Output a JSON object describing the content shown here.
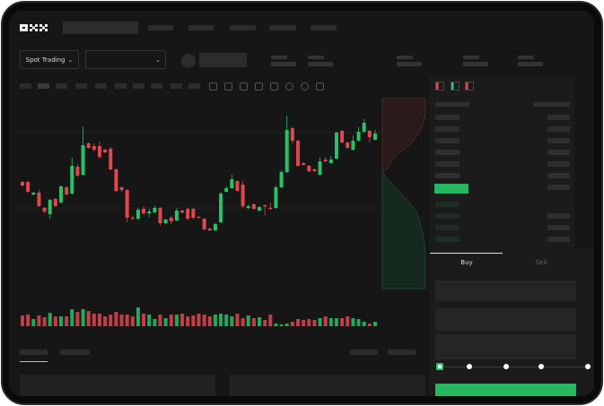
{
  "brand": {
    "logo_text": "OKX"
  },
  "market_select": {
    "label": "Spot Trading",
    "chevron": "chevron-down-icon"
  },
  "pair_select": {
    "chevron": "chevron-down-icon"
  },
  "order_form": {
    "tabs": [
      {
        "label": "Buy",
        "active": true
      },
      {
        "label": "Sell",
        "active": false
      }
    ],
    "slider_level": 0,
    "submit_color": "#25b860"
  },
  "colors": {
    "up": "#26c26a",
    "down": "#e0474c",
    "background": "#161616"
  },
  "chart_data": {
    "type": "candlestick",
    "title": "",
    "xlabel": "",
    "ylabel": "",
    "grid": true,
    "candles": [
      {
        "o": 97,
        "h": 98,
        "l": 92,
        "c": 93
      },
      {
        "o": 97,
        "h": 98,
        "l": 85,
        "c": 86
      },
      {
        "o": 83,
        "h": 86,
        "l": 82,
        "c": 85
      },
      {
        "o": 85,
        "h": 88,
        "l": 69,
        "c": 70
      },
      {
        "o": 68,
        "h": 69,
        "l": 62,
        "c": 64
      },
      {
        "o": 61,
        "h": 78,
        "l": 56,
        "c": 77
      },
      {
        "o": 78,
        "h": 79,
        "l": 69,
        "c": 70
      },
      {
        "o": 74,
        "h": 93,
        "l": 73,
        "c": 92
      },
      {
        "o": 91,
        "h": 92,
        "l": 82,
        "c": 83
      },
      {
        "o": 84,
        "h": 124,
        "l": 83,
        "c": 115
      },
      {
        "o": 114,
        "h": 117,
        "l": 103,
        "c": 104
      },
      {
        "o": 105,
        "h": 159,
        "l": 104,
        "c": 138
      },
      {
        "o": 140,
        "h": 141,
        "l": 134,
        "c": 135
      },
      {
        "o": 137,
        "h": 140,
        "l": 131,
        "c": 133
      },
      {
        "o": 137,
        "h": 142,
        "l": 123,
        "c": 125
      },
      {
        "o": 133,
        "h": 134,
        "l": 129,
        "c": 130
      },
      {
        "o": 134,
        "h": 136,
        "l": 110,
        "c": 111
      },
      {
        "o": 111,
        "h": 112,
        "l": 86,
        "c": 87
      },
      {
        "o": 91,
        "h": 92,
        "l": 86,
        "c": 88
      },
      {
        "o": 88,
        "h": 89,
        "l": 52,
        "c": 57
      },
      {
        "o": 57,
        "h": 59,
        "l": 55,
        "c": 56
      },
      {
        "o": 56,
        "h": 68,
        "l": 54,
        "c": 66
      },
      {
        "o": 67,
        "h": 70,
        "l": 60,
        "c": 62
      },
      {
        "o": 62,
        "h": 67,
        "l": 58,
        "c": 64
      },
      {
        "o": 63,
        "h": 71,
        "l": 62,
        "c": 68
      },
      {
        "o": 68,
        "h": 69,
        "l": 48,
        "c": 51
      },
      {
        "o": 51,
        "h": 56,
        "l": 50,
        "c": 55
      },
      {
        "o": 57,
        "h": 59,
        "l": 50,
        "c": 53
      },
      {
        "o": 54,
        "h": 68,
        "l": 53,
        "c": 65
      },
      {
        "o": 65,
        "h": 66,
        "l": 62,
        "c": 63
      },
      {
        "o": 67,
        "h": 68,
        "l": 54,
        "c": 56
      },
      {
        "o": 67,
        "h": 68,
        "l": 55,
        "c": 57
      },
      {
        "o": 58,
        "h": 59,
        "l": 56,
        "c": 57
      },
      {
        "o": 56,
        "h": 57,
        "l": 43,
        "c": 44
      },
      {
        "o": 45,
        "h": 46,
        "l": 42,
        "c": 43
      },
      {
        "o": 43,
        "h": 51,
        "l": 42,
        "c": 50
      },
      {
        "o": 52,
        "h": 86,
        "l": 51,
        "c": 84
      },
      {
        "o": 86,
        "h": 92,
        "l": 85,
        "c": 90
      },
      {
        "o": 90,
        "h": 105,
        "l": 89,
        "c": 100
      },
      {
        "o": 98,
        "h": 99,
        "l": 86,
        "c": 87
      },
      {
        "o": 94,
        "h": 98,
        "l": 68,
        "c": 70
      },
      {
        "o": 68,
        "h": 72,
        "l": 66,
        "c": 70
      },
      {
        "o": 72,
        "h": 73,
        "l": 66,
        "c": 67
      },
      {
        "o": 65,
        "h": 70,
        "l": 64,
        "c": 69
      },
      {
        "o": 71,
        "h": 72,
        "l": 60,
        "c": 70
      },
      {
        "o": 68,
        "h": 74,
        "l": 66,
        "c": 67
      },
      {
        "o": 68,
        "h": 93,
        "l": 67,
        "c": 91
      },
      {
        "o": 91,
        "h": 110,
        "l": 90,
        "c": 108
      },
      {
        "o": 108,
        "h": 171,
        "l": 107,
        "c": 155
      },
      {
        "o": 157,
        "h": 159,
        "l": 140,
        "c": 143
      },
      {
        "o": 143,
        "h": 144,
        "l": 114,
        "c": 115
      },
      {
        "o": 118,
        "h": 119,
        "l": 115,
        "c": 116
      },
      {
        "o": 115,
        "h": 116,
        "l": 108,
        "c": 109
      },
      {
        "o": 111,
        "h": 112,
        "l": 108,
        "c": 109
      },
      {
        "o": 105,
        "h": 124,
        "l": 104,
        "c": 120
      },
      {
        "o": 122,
        "h": 125,
        "l": 119,
        "c": 120
      },
      {
        "o": 118,
        "h": 126,
        "l": 117,
        "c": 122
      },
      {
        "o": 123,
        "h": 153,
        "l": 122,
        "c": 152
      },
      {
        "o": 154,
        "h": 155,
        "l": 140,
        "c": 141
      },
      {
        "o": 141,
        "h": 142,
        "l": 134,
        "c": 135
      },
      {
        "o": 133,
        "h": 149,
        "l": 132,
        "c": 143
      },
      {
        "o": 143,
        "h": 158,
        "l": 142,
        "c": 153
      },
      {
        "o": 153,
        "h": 167,
        "l": 152,
        "c": 163
      },
      {
        "o": 154,
        "h": 155,
        "l": 141,
        "c": 147
      },
      {
        "o": 144,
        "h": 155,
        "l": 143,
        "c": 151
      }
    ],
    "volume": [
      12,
      13,
      8,
      12,
      10,
      15,
      11,
      11,
      11,
      19,
      16,
      19,
      17,
      14,
      14,
      11,
      13,
      16,
      13,
      13,
      11,
      21,
      14,
      13,
      8,
      13,
      9,
      13,
      13,
      14,
      11,
      12,
      14,
      13,
      11,
      13,
      14,
      13,
      11,
      14,
      9,
      12,
      9,
      10,
      7,
      13,
      3,
      2,
      3,
      5,
      8,
      7,
      8,
      7,
      9,
      11,
      9,
      9,
      9,
      11,
      9,
      8,
      5,
      3,
      5
    ]
  }
}
